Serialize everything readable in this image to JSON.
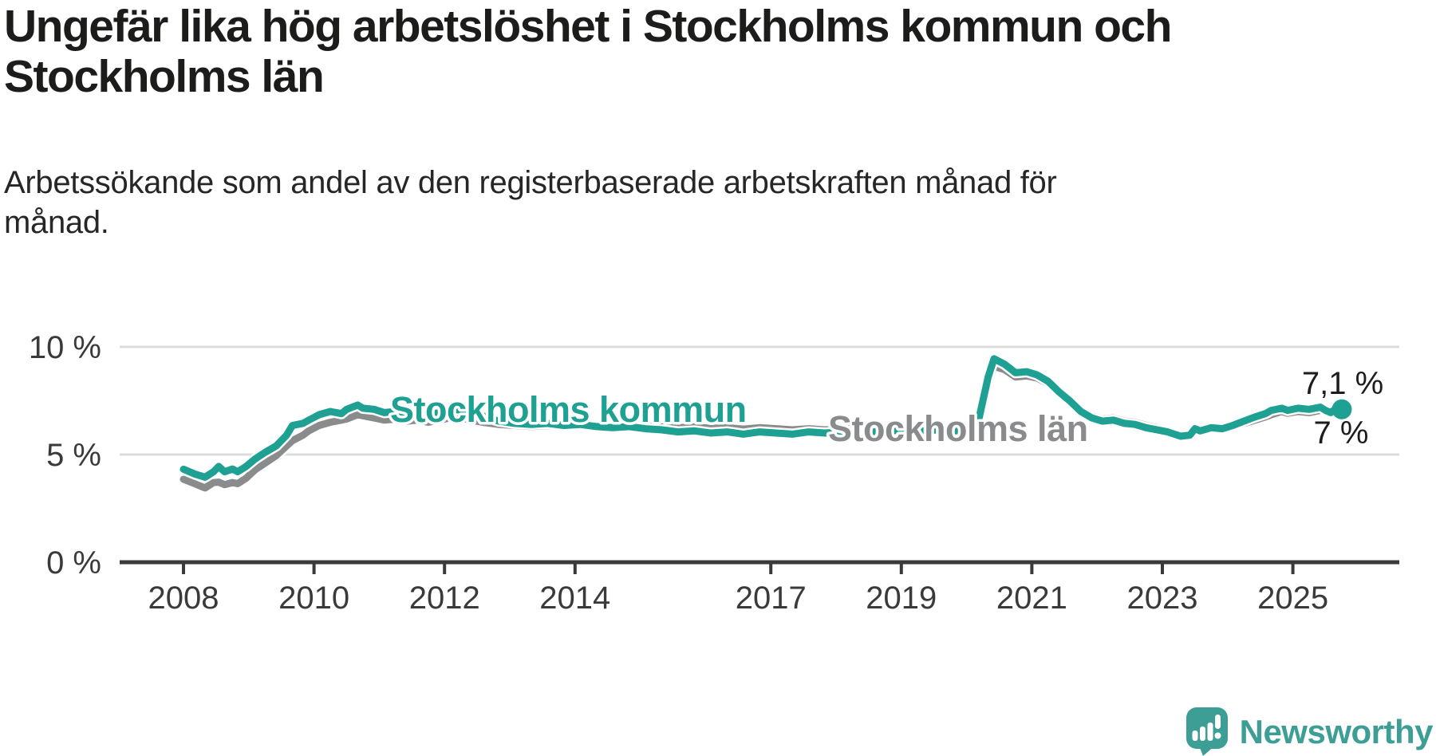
{
  "header": {
    "title_line1": "Ungefär lika hög arbetslöshet i Stockholms kommun och",
    "title_line2": "Stockholms län",
    "subtitle_line1": "Arbetssökande som andel av den registerbaserade arbetskraften månad för",
    "subtitle_line2": "månad."
  },
  "chart_data": {
    "type": "line",
    "x_unit": "year (monthly data)",
    "ylabel": "",
    "xlabel": "",
    "ylim": [
      0,
      10
    ],
    "xlim": [
      2008,
      2025.75
    ],
    "grid": "horizontal",
    "y_ticks": [
      {
        "value": 0,
        "label": "0 %"
      },
      {
        "value": 5,
        "label": "5 %"
      },
      {
        "value": 10,
        "label": "10 %"
      }
    ],
    "x_ticks": [
      {
        "value": 2008,
        "label": "2008"
      },
      {
        "value": 2010,
        "label": "2010"
      },
      {
        "value": 2012,
        "label": "2012"
      },
      {
        "value": 2014,
        "label": "2014"
      },
      {
        "value": 2017,
        "label": "2017"
      },
      {
        "value": 2019,
        "label": "2019"
      },
      {
        "value": 2021,
        "label": "2021"
      },
      {
        "value": 2023,
        "label": "2023"
      },
      {
        "value": 2025,
        "label": "2025"
      }
    ],
    "series": [
      {
        "name": "Stockholms län",
        "color": "#8a8b8d",
        "end_label": "7 %",
        "end_dot": false,
        "points": [
          [
            2008.0,
            3.85
          ],
          [
            2008.17,
            3.65
          ],
          [
            2008.33,
            3.45
          ],
          [
            2008.46,
            3.7
          ],
          [
            2008.54,
            3.72
          ],
          [
            2008.63,
            3.6
          ],
          [
            2008.75,
            3.7
          ],
          [
            2008.83,
            3.65
          ],
          [
            2008.96,
            3.9
          ],
          [
            2009.1,
            4.3
          ],
          [
            2009.25,
            4.6
          ],
          [
            2009.42,
            4.95
          ],
          [
            2009.58,
            5.4
          ],
          [
            2009.67,
            5.65
          ],
          [
            2009.83,
            5.9
          ],
          [
            2009.92,
            6.1
          ],
          [
            2010.08,
            6.35
          ],
          [
            2010.25,
            6.5
          ],
          [
            2010.42,
            6.6
          ],
          [
            2010.5,
            6.65
          ],
          [
            2010.67,
            6.85
          ],
          [
            2010.75,
            6.8
          ],
          [
            2010.92,
            6.7
          ],
          [
            2011.08,
            6.6
          ],
          [
            2011.25,
            6.65
          ],
          [
            2011.42,
            6.55
          ],
          [
            2011.58,
            6.6
          ],
          [
            2011.75,
            6.5
          ],
          [
            2011.92,
            6.6
          ],
          [
            2012.08,
            6.7
          ],
          [
            2012.33,
            6.65
          ],
          [
            2012.58,
            6.5
          ],
          [
            2012.83,
            6.4
          ],
          [
            2013.08,
            6.35
          ],
          [
            2013.33,
            6.3
          ],
          [
            2013.58,
            6.35
          ],
          [
            2013.83,
            6.3
          ],
          [
            2014.08,
            6.35
          ],
          [
            2014.33,
            6.3
          ],
          [
            2014.58,
            6.33
          ],
          [
            2014.83,
            6.35
          ],
          [
            2015.08,
            6.3
          ],
          [
            2015.33,
            6.28
          ],
          [
            2015.58,
            6.25
          ],
          [
            2015.83,
            6.28
          ],
          [
            2016.08,
            6.22
          ],
          [
            2016.33,
            6.25
          ],
          [
            2016.58,
            6.18
          ],
          [
            2016.83,
            6.25
          ],
          [
            2017.08,
            6.2
          ],
          [
            2017.33,
            6.15
          ],
          [
            2017.58,
            6.2
          ],
          [
            2017.83,
            6.15
          ],
          [
            2018.08,
            6.18
          ],
          [
            2018.33,
            6.22
          ],
          [
            2018.58,
            6.15
          ],
          [
            2018.83,
            6.2
          ],
          [
            2019.08,
            6.22
          ],
          [
            2019.33,
            6.18
          ],
          [
            2019.58,
            6.22
          ],
          [
            2019.83,
            6.18
          ],
          [
            2020.0,
            6.22
          ],
          [
            2020.17,
            6.45
          ],
          [
            2020.33,
            8.35
          ],
          [
            2020.42,
            9.1
          ],
          [
            2020.58,
            8.95
          ],
          [
            2020.75,
            8.6
          ],
          [
            2020.92,
            8.65
          ],
          [
            2021.08,
            8.55
          ],
          [
            2021.25,
            8.3
          ],
          [
            2021.42,
            7.85
          ],
          [
            2021.58,
            7.5
          ],
          [
            2021.75,
            7.05
          ],
          [
            2021.92,
            6.8
          ],
          [
            2022.08,
            6.65
          ],
          [
            2022.25,
            6.7
          ],
          [
            2022.42,
            6.55
          ],
          [
            2022.58,
            6.5
          ],
          [
            2022.75,
            6.35
          ],
          [
            2022.92,
            6.25
          ],
          [
            2023.08,
            6.12
          ],
          [
            2023.28,
            5.95
          ],
          [
            2023.42,
            5.98
          ],
          [
            2023.5,
            6.22
          ],
          [
            2023.58,
            6.12
          ],
          [
            2023.75,
            6.22
          ],
          [
            2023.92,
            6.15
          ],
          [
            2024.08,
            6.28
          ],
          [
            2024.25,
            6.45
          ],
          [
            2024.42,
            6.6
          ],
          [
            2024.58,
            6.75
          ],
          [
            2024.67,
            6.85
          ],
          [
            2024.83,
            7.0
          ],
          [
            2024.92,
            6.92
          ],
          [
            2025.08,
            7.0
          ],
          [
            2025.25,
            6.95
          ],
          [
            2025.42,
            7.05
          ],
          [
            2025.5,
            7.1
          ],
          [
            2025.58,
            7.05
          ],
          [
            2025.67,
            7.0
          ],
          [
            2025.75,
            7.0
          ]
        ]
      },
      {
        "name": "Stockholms kommun",
        "color": "#1ea192",
        "end_label": "7,1 %",
        "end_dot": true,
        "points": [
          [
            2008.0,
            4.32
          ],
          [
            2008.17,
            4.1
          ],
          [
            2008.33,
            3.95
          ],
          [
            2008.46,
            4.2
          ],
          [
            2008.54,
            4.45
          ],
          [
            2008.63,
            4.2
          ],
          [
            2008.75,
            4.33
          ],
          [
            2008.83,
            4.2
          ],
          [
            2008.96,
            4.45
          ],
          [
            2009.1,
            4.8
          ],
          [
            2009.25,
            5.1
          ],
          [
            2009.42,
            5.4
          ],
          [
            2009.58,
            5.9
          ],
          [
            2009.67,
            6.35
          ],
          [
            2009.83,
            6.45
          ],
          [
            2009.92,
            6.6
          ],
          [
            2010.08,
            6.85
          ],
          [
            2010.25,
            7.0
          ],
          [
            2010.42,
            6.9
          ],
          [
            2010.5,
            7.1
          ],
          [
            2010.67,
            7.3
          ],
          [
            2010.75,
            7.15
          ],
          [
            2010.92,
            7.1
          ],
          [
            2011.08,
            6.95
          ],
          [
            2011.25,
            7.0
          ],
          [
            2011.42,
            6.9
          ],
          [
            2011.58,
            6.95
          ],
          [
            2011.75,
            6.85
          ],
          [
            2011.92,
            6.95
          ],
          [
            2012.08,
            7.1
          ],
          [
            2012.33,
            7.05
          ],
          [
            2012.58,
            6.8
          ],
          [
            2012.83,
            6.55
          ],
          [
            2013.08,
            6.45
          ],
          [
            2013.33,
            6.4
          ],
          [
            2013.58,
            6.45
          ],
          [
            2013.83,
            6.35
          ],
          [
            2014.08,
            6.4
          ],
          [
            2014.33,
            6.3
          ],
          [
            2014.58,
            6.25
          ],
          [
            2014.83,
            6.3
          ],
          [
            2015.08,
            6.2
          ],
          [
            2015.33,
            6.15
          ],
          [
            2015.58,
            6.05
          ],
          [
            2015.83,
            6.1
          ],
          [
            2016.08,
            6.0
          ],
          [
            2016.33,
            6.05
          ],
          [
            2016.58,
            5.95
          ],
          [
            2016.83,
            6.05
          ],
          [
            2017.08,
            6.0
          ],
          [
            2017.33,
            5.95
          ],
          [
            2017.58,
            6.05
          ],
          [
            2017.83,
            6.0
          ],
          [
            2018.08,
            6.05
          ],
          [
            2018.33,
            6.1
          ],
          [
            2018.58,
            6.05
          ],
          [
            2018.83,
            6.1
          ],
          [
            2019.08,
            6.15
          ],
          [
            2019.33,
            6.1
          ],
          [
            2019.58,
            6.15
          ],
          [
            2019.83,
            6.1
          ],
          [
            2020.0,
            6.15
          ],
          [
            2020.17,
            6.4
          ],
          [
            2020.33,
            8.6
          ],
          [
            2020.42,
            9.45
          ],
          [
            2020.58,
            9.2
          ],
          [
            2020.75,
            8.8
          ],
          [
            2020.92,
            8.85
          ],
          [
            2021.08,
            8.7
          ],
          [
            2021.25,
            8.4
          ],
          [
            2021.42,
            7.9
          ],
          [
            2021.58,
            7.5
          ],
          [
            2021.75,
            7.0
          ],
          [
            2021.92,
            6.7
          ],
          [
            2022.08,
            6.55
          ],
          [
            2022.25,
            6.6
          ],
          [
            2022.42,
            6.45
          ],
          [
            2022.58,
            6.4
          ],
          [
            2022.75,
            6.25
          ],
          [
            2022.92,
            6.15
          ],
          [
            2023.08,
            6.05
          ],
          [
            2023.28,
            5.85
          ],
          [
            2023.42,
            5.9
          ],
          [
            2023.5,
            6.2
          ],
          [
            2023.58,
            6.1
          ],
          [
            2023.75,
            6.25
          ],
          [
            2023.92,
            6.2
          ],
          [
            2024.08,
            6.35
          ],
          [
            2024.25,
            6.55
          ],
          [
            2024.42,
            6.75
          ],
          [
            2024.58,
            6.9
          ],
          [
            2024.67,
            7.05
          ],
          [
            2024.83,
            7.15
          ],
          [
            2024.92,
            7.05
          ],
          [
            2025.08,
            7.15
          ],
          [
            2025.25,
            7.1
          ],
          [
            2025.42,
            7.2
          ],
          [
            2025.5,
            7.05
          ],
          [
            2025.58,
            6.95
          ],
          [
            2025.67,
            7.15
          ],
          [
            2025.75,
            7.1
          ]
        ]
      }
    ]
  },
  "footer": {
    "brand": "Newsworthy"
  },
  "colors": {
    "kommun_teal": "#1ea192",
    "lan_gray": "#8a8b8d",
    "logo_teal": "#3d9e96",
    "axis": "#3a3a3a",
    "gridline": "#dcdcdc",
    "title_text": "#1c1c1b",
    "value_label_text": "#1d1d1d"
  }
}
